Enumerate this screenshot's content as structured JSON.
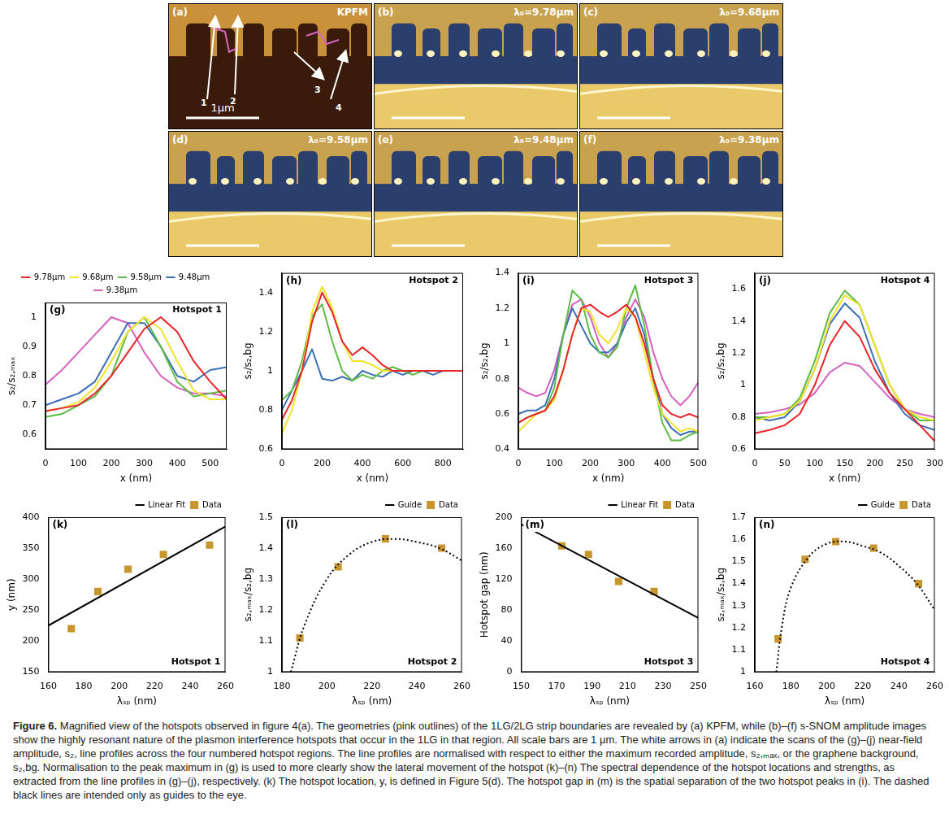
{
  "images": [
    {
      "panel": "(a)",
      "title": "KPFM",
      "scale_bar": "1μm",
      "arrows": [
        "1",
        "2",
        "3",
        "4"
      ]
    },
    {
      "panel": "(b)",
      "title": "λ₀=9.78μm"
    },
    {
      "panel": "(c)",
      "title": "λ₀=9.68μm"
    },
    {
      "panel": "(d)",
      "title": "λ₀=9.58μm"
    },
    {
      "panel": "(e)",
      "title": "λ₀=9.48μm"
    },
    {
      "panel": "(f)",
      "title": "λ₀=9.38μm"
    }
  ],
  "chart_data": [
    {
      "panel": "(g)",
      "type": "line",
      "title": "Hotspot 1",
      "x_label": "x (nm)",
      "y_label": "s₂/s₂,ₘₐₓ",
      "x": [
        0,
        50,
        100,
        150,
        200,
        250,
        300,
        350,
        400,
        450,
        500,
        550
      ],
      "series": [
        {
          "name": "9.78μm",
          "color": "#e8252a",
          "values": [
            0.68,
            0.69,
            0.7,
            0.74,
            0.8,
            0.88,
            0.96,
            1.0,
            0.95,
            0.85,
            0.78,
            0.72
          ]
        },
        {
          "name": "9.68μm",
          "color": "#f2e32a",
          "values": [
            0.68,
            0.69,
            0.71,
            0.76,
            0.85,
            0.95,
            1.0,
            0.96,
            0.85,
            0.75,
            0.72,
            0.72
          ]
        },
        {
          "name": "9.58μm",
          "color": "#5dbb46",
          "values": [
            0.66,
            0.67,
            0.7,
            0.73,
            0.8,
            0.95,
            1.0,
            0.9,
            0.78,
            0.73,
            0.74,
            0.75
          ]
        },
        {
          "name": "9.48μm",
          "color": "#3b6fb6",
          "values": [
            0.7,
            0.72,
            0.74,
            0.78,
            0.88,
            0.98,
            0.98,
            0.9,
            0.8,
            0.78,
            0.82,
            0.83
          ]
        },
        {
          "name": "9.38μm",
          "color": "#d660c0",
          "values": [
            0.77,
            0.82,
            0.88,
            0.94,
            1.0,
            0.98,
            0.88,
            0.8,
            0.76,
            0.74,
            0.74,
            0.73
          ]
        }
      ],
      "xlim": [
        0,
        550
      ],
      "xticks": [
        0,
        100,
        200,
        300,
        400,
        500
      ],
      "ylim": [
        0.55,
        1.05
      ],
      "yticks": [
        0.6,
        0.7,
        0.8,
        0.9,
        1
      ],
      "legend": "top"
    },
    {
      "panel": "(h)",
      "type": "line",
      "title": "Hotspot 2",
      "x_label": "x (nm)",
      "y_label": "s₂/s₂,bg",
      "x": [
        0,
        50,
        100,
        150,
        200,
        250,
        300,
        350,
        400,
        450,
        500,
        550,
        600,
        650,
        700,
        750,
        800,
        850,
        900
      ],
      "series": [
        {
          "name": "9.78μm",
          "color": "#e8252a",
          "values": [
            0.75,
            0.85,
            1.0,
            1.25,
            1.4,
            1.3,
            1.15,
            1.08,
            1.12,
            1.08,
            1.03,
            1.0,
            1.0,
            1.0,
            1.0,
            1.0,
            1.0,
            1.0,
            1.0
          ]
        },
        {
          "name": "9.68μm",
          "color": "#f2e32a",
          "values": [
            0.68,
            0.8,
            1.0,
            1.3,
            1.43,
            1.32,
            1.15,
            1.05,
            1.05,
            1.03,
            1.0,
            1.0,
            1.0,
            1.0,
            1.0,
            1.0,
            1.0,
            1.0,
            1.0
          ]
        },
        {
          "name": "9.58μm",
          "color": "#5dbb46",
          "values": [
            0.85,
            0.9,
            1.05,
            1.28,
            1.34,
            1.15,
            1.0,
            0.95,
            0.98,
            0.96,
            1.0,
            1.02,
            1.0,
            0.98,
            1.0,
            1.0,
            1.0,
            1.0,
            1.0
          ]
        },
        {
          "name": "9.48μm",
          "color": "#3b6fb6",
          "values": [
            0.8,
            0.9,
            1.0,
            1.11,
            0.96,
            0.95,
            0.97,
            0.95,
            1.0,
            0.98,
            0.97,
            1.0,
            0.98,
            1.0,
            1.0,
            0.98,
            1.0,
            1.0,
            1.0
          ]
        }
      ],
      "xlim": [
        0,
        900
      ],
      "xticks": [
        0,
        200,
        400,
        600,
        800
      ],
      "ylim": [
        0.6,
        1.5
      ],
      "yticks": [
        0.6,
        0.8,
        1,
        1.2,
        1.4
      ]
    },
    {
      "panel": "(i)",
      "type": "line",
      "title": "Hotspot 3",
      "x_label": "x (nm)",
      "y_label": "s₂/s₂,bg",
      "x": [
        0,
        25,
        50,
        75,
        100,
        125,
        150,
        175,
        200,
        225,
        250,
        275,
        300,
        325,
        350,
        375,
        400,
        425,
        450,
        475,
        500
      ],
      "series": [
        {
          "name": "9.78μm",
          "color": "#e8252a",
          "values": [
            0.55,
            0.58,
            0.6,
            0.62,
            0.7,
            0.85,
            1.05,
            1.2,
            1.22,
            1.18,
            1.15,
            1.18,
            1.22,
            1.15,
            1.0,
            0.8,
            0.65,
            0.6,
            0.58,
            0.6,
            0.58
          ]
        },
        {
          "name": "9.68μm",
          "color": "#f2e32a",
          "values": [
            0.5,
            0.55,
            0.6,
            0.62,
            0.68,
            0.85,
            1.05,
            1.2,
            1.18,
            1.05,
            1.0,
            1.08,
            1.2,
            1.15,
            0.95,
            0.75,
            0.6,
            0.55,
            0.5,
            0.52,
            0.5
          ]
        },
        {
          "name": "9.58μm",
          "color": "#5dbb46",
          "values": [
            0.55,
            0.58,
            0.6,
            0.62,
            0.75,
            1.05,
            1.3,
            1.25,
            1.05,
            0.95,
            0.92,
            0.98,
            1.2,
            1.33,
            1.1,
            0.8,
            0.55,
            0.45,
            0.45,
            0.48,
            0.5
          ]
        },
        {
          "name": "9.48μm",
          "color": "#3b6fb6",
          "values": [
            0.6,
            0.62,
            0.62,
            0.65,
            0.8,
            1.05,
            1.2,
            1.1,
            1.0,
            0.95,
            0.95,
            1.0,
            1.12,
            1.2,
            1.05,
            0.8,
            0.6,
            0.52,
            0.48,
            0.5,
            0.5
          ]
        },
        {
          "name": "9.38μm",
          "color": "#d660c0",
          "values": [
            0.75,
            0.72,
            0.7,
            0.72,
            0.85,
            1.05,
            1.22,
            1.25,
            1.15,
            1.0,
            0.92,
            1.0,
            1.15,
            1.25,
            1.15,
            0.95,
            0.8,
            0.7,
            0.65,
            0.7,
            0.78
          ]
        }
      ],
      "xlim": [
        0,
        500
      ],
      "xticks": [
        0,
        100,
        200,
        300,
        400,
        500
      ],
      "ylim": [
        0.4,
        1.4
      ],
      "yticks": [
        0.4,
        0.6,
        0.8,
        1,
        1.2,
        1.4
      ]
    },
    {
      "panel": "(j)",
      "type": "line",
      "title": "Hotspot 4",
      "x_label": "x (nm)",
      "y_label": "s₂/s₂,bg",
      "x": [
        0,
        25,
        50,
        75,
        100,
        125,
        150,
        175,
        200,
        225,
        250,
        275,
        300
      ],
      "series": [
        {
          "name": "9.78μm",
          "color": "#e8252a",
          "values": [
            0.7,
            0.72,
            0.75,
            0.82,
            1.0,
            1.25,
            1.4,
            1.3,
            1.1,
            0.95,
            0.85,
            0.75,
            0.65
          ]
        },
        {
          "name": "9.68μm",
          "color": "#f2e32a",
          "values": [
            0.78,
            0.8,
            0.82,
            0.9,
            1.1,
            1.4,
            1.56,
            1.5,
            1.25,
            1.0,
            0.85,
            0.8,
            0.78
          ]
        },
        {
          "name": "9.58μm",
          "color": "#5dbb46",
          "values": [
            0.8,
            0.8,
            0.82,
            0.92,
            1.15,
            1.45,
            1.59,
            1.5,
            1.25,
            1.0,
            0.85,
            0.78,
            0.78
          ]
        },
        {
          "name": "9.48μm",
          "color": "#3b6fb6",
          "values": [
            0.8,
            0.78,
            0.8,
            0.9,
            1.1,
            1.38,
            1.51,
            1.42,
            1.15,
            0.95,
            0.82,
            0.75,
            0.72
          ]
        },
        {
          "name": "9.38μm",
          "color": "#d660c0",
          "values": [
            0.82,
            0.83,
            0.85,
            0.88,
            0.95,
            1.08,
            1.14,
            1.12,
            1.02,
            0.92,
            0.85,
            0.82,
            0.8
          ]
        }
      ],
      "xlim": [
        0,
        300
      ],
      "xticks": [
        0,
        50,
        100,
        150,
        200,
        250,
        300
      ],
      "ylim": [
        0.6,
        1.7
      ],
      "yticks": [
        0.6,
        0.8,
        1,
        1.2,
        1.4,
        1.6
      ]
    },
    {
      "panel": "(k)",
      "type": "scatter",
      "title": "Hotspot 1",
      "x_label": "λₛₚ (nm)",
      "y_label": "y (nm)",
      "series": [
        {
          "name": "Linear Fit",
          "type": "line",
          "line_style": "solid",
          "color": "#000000",
          "x": [
            160,
            260
          ],
          "values": [
            225,
            385
          ]
        },
        {
          "name": "Data",
          "type": "scatter",
          "marker": "square",
          "color": "#c8962e",
          "x": [
            173,
            188,
            205,
            225,
            251
          ],
          "values": [
            220,
            280,
            316,
            340,
            355
          ]
        }
      ],
      "xlim": [
        160,
        260
      ],
      "xticks": [
        160,
        180,
        200,
        220,
        240,
        260
      ],
      "ylim": [
        150,
        400
      ],
      "yticks": [
        150,
        200,
        250,
        300,
        350,
        400
      ],
      "legend": "top-right"
    },
    {
      "panel": "(l)",
      "type": "scatter",
      "title": "Hotspot 2",
      "x_label": "λₛₚ (nm)",
      "y_label": "s₂,ₘₐₓ/s₂,bg",
      "series": [
        {
          "name": "Guide",
          "type": "line",
          "line_style": "dotted",
          "color": "#000000",
          "x": [
            184,
            190,
            200,
            210,
            220,
            230,
            240,
            250,
            260
          ],
          "values": [
            1.0,
            1.15,
            1.3,
            1.38,
            1.42,
            1.43,
            1.42,
            1.4,
            1.36
          ]
        },
        {
          "name": "Data",
          "type": "scatter",
          "marker": "square",
          "color": "#c8962e",
          "x": [
            188,
            205,
            226,
            251
          ],
          "values": [
            1.11,
            1.34,
            1.43,
            1.4
          ]
        }
      ],
      "xlim": [
        180,
        260
      ],
      "xticks": [
        180,
        200,
        220,
        240,
        260
      ],
      "ylim": [
        1,
        1.5
      ],
      "yticks": [
        1,
        1.1,
        1.2,
        1.3,
        1.4,
        1.5
      ],
      "legend": "top-right"
    },
    {
      "panel": "(m)",
      "type": "scatter",
      "title": "Hotspot 3",
      "x_label": "λₛₚ (nm)",
      "y_label": "Hotspot gap (nm)",
      "series": [
        {
          "name": "Linear Fit",
          "type": "line",
          "line_style": "solid",
          "color": "#000000",
          "x": [
            150,
            250
          ],
          "values": [
            191,
            70
          ]
        },
        {
          "name": "Data",
          "type": "scatter",
          "marker": "square",
          "color": "#c8962e",
          "x": [
            173,
            188,
            205,
            225
          ],
          "values": [
            163,
            152,
            117,
            104
          ]
        }
      ],
      "xlim": [
        150,
        250
      ],
      "xticks": [
        150,
        170,
        190,
        210,
        230,
        250
      ],
      "ylim": [
        0,
        200
      ],
      "yticks": [
        0,
        40,
        80,
        120,
        160,
        200
      ],
      "legend": "top-right"
    },
    {
      "panel": "(n)",
      "type": "scatter",
      "title": "Hotspot 4",
      "x_label": "λₛₚ (nm)",
      "y_label": "s₂,ₘₐₓ/s₂,bg",
      "series": [
        {
          "name": "Guide",
          "type": "line",
          "line_style": "dotted",
          "color": "#000000",
          "x": [
            172,
            175,
            180,
            190,
            200,
            210,
            220,
            230,
            240,
            250,
            260
          ],
          "values": [
            1.0,
            1.2,
            1.38,
            1.52,
            1.58,
            1.59,
            1.57,
            1.54,
            1.48,
            1.4,
            1.28
          ]
        },
        {
          "name": "Data",
          "type": "scatter",
          "marker": "square",
          "color": "#c8962e",
          "x": [
            173,
            188,
            205,
            226,
            251
          ],
          "values": [
            1.15,
            1.51,
            1.59,
            1.56,
            1.4
          ]
        }
      ],
      "xlim": [
        160,
        260
      ],
      "xticks": [
        160,
        180,
        200,
        220,
        240,
        260
      ],
      "ylim": [
        1,
        1.7
      ],
      "yticks": [
        1,
        1.1,
        1.2,
        1.3,
        1.4,
        1.5,
        1.6,
        1.7
      ],
      "legend": "top-right"
    }
  ],
  "caption": {
    "label": "Figure 6.",
    "text": "Magnified view of the hotspots observed in figure 4(a). The geometries (pink outlines) of the 1LG/2LG strip boundaries are revealed by (a) KPFM, while (b)–(f) s-SNOM amplitude images show the highly resonant nature of the plasmon interference hotspots that occur in the 1LG in that region. All scale bars are 1 μm. The white arrows in (a) indicate the scans of the (g)–(j) near-field amplitude, s₂, line profiles across the four numbered hotspot regions. The line profiles are normalised with respect to either the maximum recorded amplitude, s₂,ₘₐₓ, or the graphene background, s₂,bg. Normalisation to the peak maximum in (g) is used to more clearly show the lateral movement of the hotspot (k)–(n) The spectral dependence of the hotspot locations and strengths, as extracted from the line profiles in (g)–(j), respectively. (k) The hotspot location, y, is defined in Figure 5(d). The hotspot gap in (m) is the spatial separation of the two hotspot peaks in (i). The dashed black lines are intended only as guides to the eye."
  }
}
